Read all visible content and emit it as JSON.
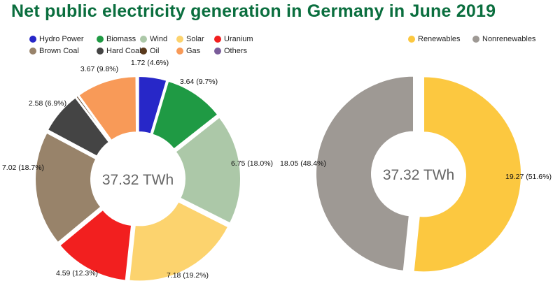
{
  "title": "Net public electricity generation in Germany in June 2019",
  "chart_data": [
    {
      "type": "pie",
      "variant": "donut",
      "center_label": "37.32 TWh",
      "legend_position": "top",
      "slices": [
        {
          "name": "Hydro Power",
          "value": 1.72,
          "label": "1.72 (4.6%)",
          "color": "#2727c8"
        },
        {
          "name": "Biomass",
          "value": 3.64,
          "label": "3.64 (9.7%)",
          "color": "#1f9a44"
        },
        {
          "name": "Wind",
          "value": 6.75,
          "label": "6.75 (18.0%)",
          "color": "#acc8a8"
        },
        {
          "name": "Solar",
          "value": 7.18,
          "label": "7.18 (19.2%)",
          "color": "#fcd36e"
        },
        {
          "name": "Uranium",
          "value": 4.59,
          "label": "4.59 (12.3%)",
          "color": "#f21f1f"
        },
        {
          "name": "Brown Coal",
          "value": 7.02,
          "label": "7.02 (18.7%)",
          "color": "#98836a"
        },
        {
          "name": "Hard Coal",
          "value": 2.58,
          "label": "2.58 (6.9%)",
          "color": "#444444"
        },
        {
          "name": "Oil",
          "value": 0.13,
          "label": "",
          "color": "#5a3a1c"
        },
        {
          "name": "Gas",
          "value": 3.67,
          "label": "3.67 (9.8%)",
          "color": "#f89a58"
        },
        {
          "name": "Others",
          "value": 0.04,
          "label": "",
          "color": "#7a5c9a"
        }
      ]
    },
    {
      "type": "pie",
      "variant": "donut",
      "center_label": "37.32 TWh",
      "legend_position": "top",
      "slices": [
        {
          "name": "Renewables",
          "value": 19.27,
          "label": "19.27 (51.6%)",
          "color": "#fcc840"
        },
        {
          "name": "Nonrenewables",
          "value": 18.05,
          "label": "18.05 (48.4%)",
          "color": "#9e9994"
        }
      ]
    }
  ]
}
